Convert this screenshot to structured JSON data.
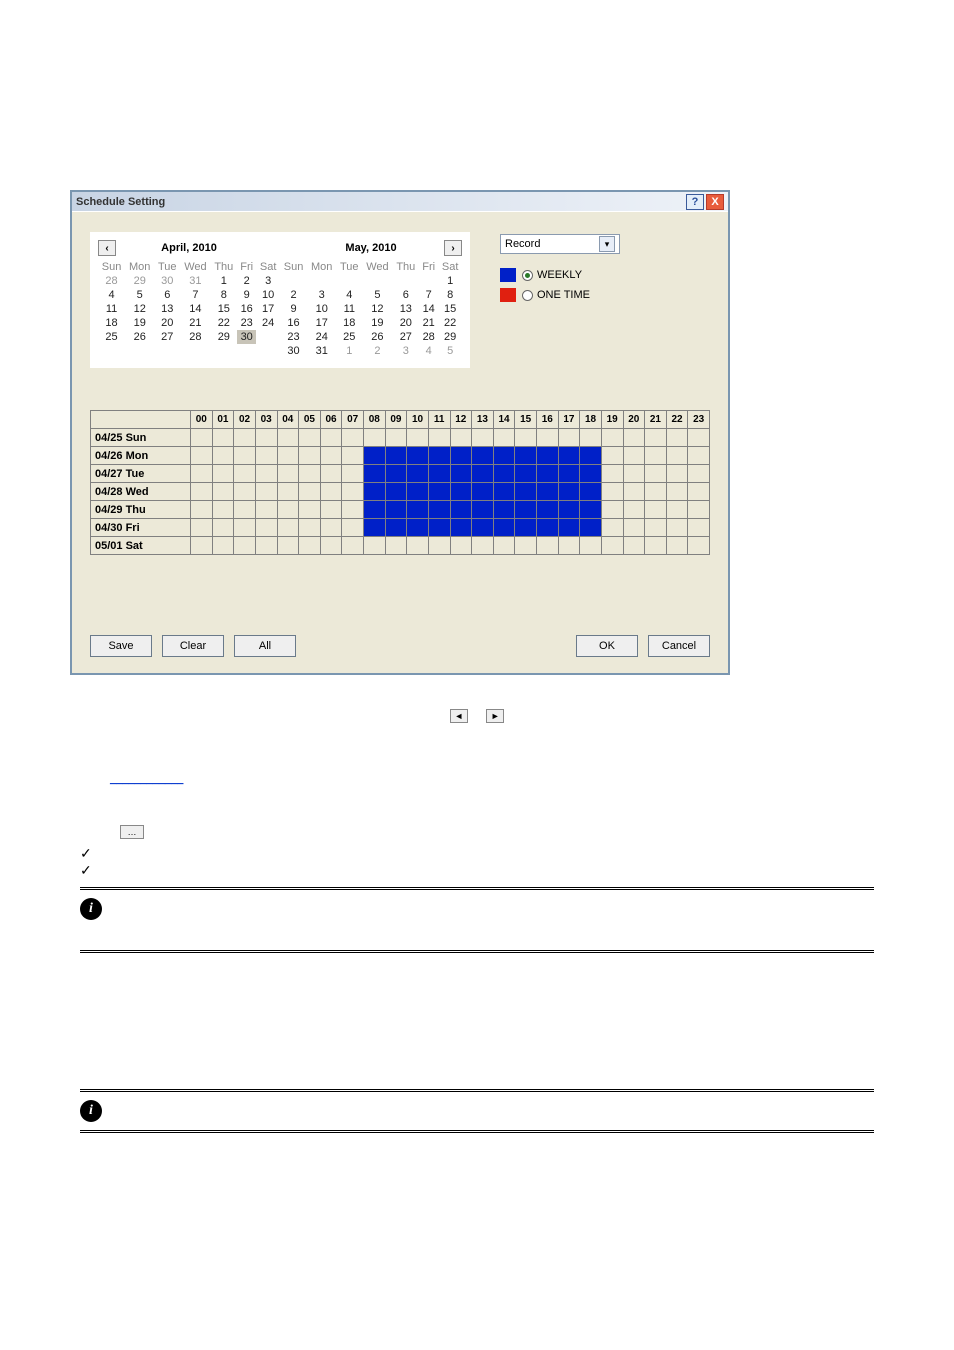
{
  "dialog": {
    "title": "Schedule Setting",
    "nav_prev": "‹",
    "nav_next": "›",
    "month1": "April, 2010",
    "month2": "May, 2010",
    "weekdays": [
      "Sun",
      "Mon",
      "Tue",
      "Wed",
      "Thu",
      "Fri",
      "Sat"
    ],
    "cal1": {
      "rows": [
        [
          {
            "v": "28",
            "g": 1
          },
          {
            "v": "29",
            "g": 1
          },
          {
            "v": "30",
            "g": 1
          },
          {
            "v": "31",
            "g": 1
          },
          {
            "v": "1"
          },
          {
            "v": "2"
          },
          {
            "v": "3"
          }
        ],
        [
          {
            "v": "4"
          },
          {
            "v": "5"
          },
          {
            "v": "6"
          },
          {
            "v": "7"
          },
          {
            "v": "8"
          },
          {
            "v": "9"
          },
          {
            "v": "10"
          }
        ],
        [
          {
            "v": "11"
          },
          {
            "v": "12"
          },
          {
            "v": "13"
          },
          {
            "v": "14"
          },
          {
            "v": "15"
          },
          {
            "v": "16"
          },
          {
            "v": "17"
          }
        ],
        [
          {
            "v": "18"
          },
          {
            "v": "19"
          },
          {
            "v": "20"
          },
          {
            "v": "21"
          },
          {
            "v": "22"
          },
          {
            "v": "23"
          },
          {
            "v": "24"
          }
        ],
        [
          {
            "v": "25"
          },
          {
            "v": "26"
          },
          {
            "v": "27"
          },
          {
            "v": "28"
          },
          {
            "v": "29"
          },
          {
            "v": "30",
            "sel": 1
          },
          {
            "v": ""
          }
        ]
      ]
    },
    "cal2": {
      "rows": [
        [
          {
            "v": ""
          },
          {
            "v": ""
          },
          {
            "v": ""
          },
          {
            "v": ""
          },
          {
            "v": ""
          },
          {
            "v": ""
          },
          {
            "v": "1"
          }
        ],
        [
          {
            "v": "2"
          },
          {
            "v": "3"
          },
          {
            "v": "4"
          },
          {
            "v": "5"
          },
          {
            "v": "6"
          },
          {
            "v": "7"
          },
          {
            "v": "8"
          }
        ],
        [
          {
            "v": "9"
          },
          {
            "v": "10"
          },
          {
            "v": "11"
          },
          {
            "v": "12"
          },
          {
            "v": "13"
          },
          {
            "v": "14"
          },
          {
            "v": "15"
          }
        ],
        [
          {
            "v": "16"
          },
          {
            "v": "17"
          },
          {
            "v": "18"
          },
          {
            "v": "19"
          },
          {
            "v": "20"
          },
          {
            "v": "21"
          },
          {
            "v": "22"
          }
        ],
        [
          {
            "v": "23"
          },
          {
            "v": "24"
          },
          {
            "v": "25"
          },
          {
            "v": "26"
          },
          {
            "v": "27"
          },
          {
            "v": "28"
          },
          {
            "v": "29"
          }
        ],
        [
          {
            "v": "30"
          },
          {
            "v": "31"
          },
          {
            "v": "1",
            "g": 1
          },
          {
            "v": "2",
            "g": 1
          },
          {
            "v": "3",
            "g": 1
          },
          {
            "v": "4",
            "g": 1
          },
          {
            "v": "5",
            "g": 1
          }
        ]
      ]
    },
    "combo_value": "Record",
    "legend": {
      "weekly_color": "#0020c8",
      "weekly_label": "WEEKLY",
      "onetime_color": "#e02010",
      "onetime_label": "ONE TIME"
    },
    "hours": [
      "00",
      "01",
      "02",
      "03",
      "04",
      "05",
      "06",
      "07",
      "08",
      "09",
      "10",
      "11",
      "12",
      "13",
      "14",
      "15",
      "16",
      "17",
      "18",
      "19",
      "20",
      "21",
      "22",
      "23"
    ],
    "schedule_rows": [
      {
        "label": "04/25 Sun",
        "blue_start": -1,
        "blue_end": -1
      },
      {
        "label": "04/26 Mon",
        "blue_start": 8,
        "blue_end": 18
      },
      {
        "label": "04/27 Tue",
        "blue_start": 8,
        "blue_end": 18
      },
      {
        "label": "04/28 Wed",
        "blue_start": 8,
        "blue_end": 18
      },
      {
        "label": "04/29 Thu",
        "blue_start": 8,
        "blue_end": 18
      },
      {
        "label": "04/30 Fri",
        "blue_start": 8,
        "blue_end": 18
      },
      {
        "label": "05/01 Sat",
        "blue_start": -1,
        "blue_end": -1
      }
    ],
    "buttons": {
      "save": "Save",
      "clear": "Clear",
      "all": "All",
      "ok": "OK",
      "cancel": "Cancel"
    }
  },
  "below": {
    "arrows_left": "◄",
    "arrows_right": "►",
    "link_placeholder": "____________",
    "small_btn": "…"
  },
  "colors": {
    "dialog_bg": "#ece9d8",
    "border": "#7a96b0",
    "blue": "#0020c8",
    "red": "#e02010"
  }
}
